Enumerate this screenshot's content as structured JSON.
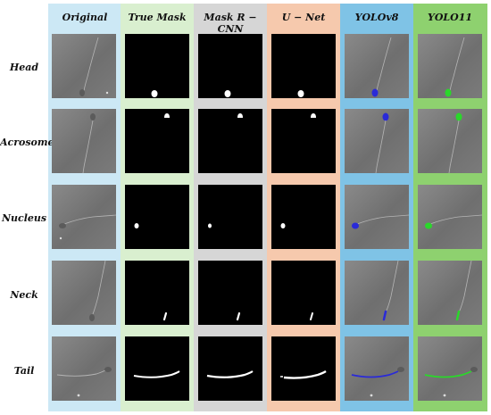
{
  "headers": [
    "Original",
    "True Mask",
    "Mask R − CNN",
    "U − Net",
    "YOLOv8",
    "YOLO11"
  ],
  "rows": [
    "Head",
    "Acrosome",
    "Nucleus",
    "Neck",
    "Tail"
  ],
  "colors": {
    "col_original": "#cce8f5",
    "col_true_mask": "#d9efcf",
    "col_mask_rcnn": "#d6d6d6",
    "col_unet": "#f6c9ad",
    "col_yolov8": "#7fc3e6",
    "col_yolo11": "#8ed16f",
    "yolov8_overlay": "#2a2ad8",
    "yolo11_overlay": "#2ad82a"
  }
}
